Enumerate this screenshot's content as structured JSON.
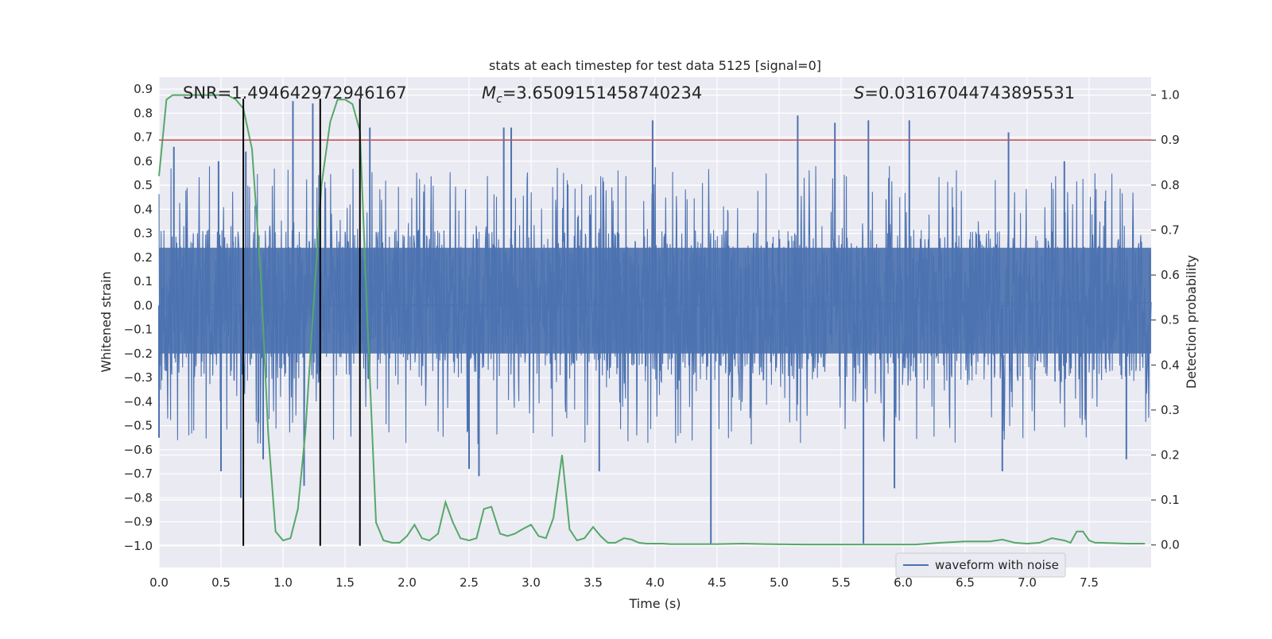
{
  "chart_data": {
    "type": "line",
    "title": "stats at each timestep for test data 5125 [signal=0]",
    "xlabel": "Time (s)",
    "ylabel": "Whitened strain",
    "y2label": "Detection probability",
    "xlim": [
      0.0,
      8.0
    ],
    "ylim": [
      -1.09,
      0.95
    ],
    "y2lim": [
      -0.05,
      1.04
    ],
    "xticks": [
      "0.0",
      "0.5",
      "1.0",
      "1.5",
      "2.0",
      "2.5",
      "3.0",
      "3.5",
      "4.0",
      "4.5",
      "5.0",
      "5.5",
      "6.0",
      "6.5",
      "7.0",
      "7.5"
    ],
    "yticks": [
      "0.9",
      "0.8",
      "0.7",
      "0.6",
      "0.5",
      "0.4",
      "0.3",
      "0.2",
      "0.1",
      "0.0",
      "-0.1",
      "-0.2",
      "-0.3",
      "-0.4",
      "-0.5",
      "-0.6",
      "-0.7",
      "-0.8",
      "-0.9",
      "-1.0"
    ],
    "y2ticks": [
      "1.0",
      "0.9",
      "0.8",
      "0.7",
      "0.6",
      "0.5",
      "0.4",
      "0.3",
      "0.2",
      "0.1",
      "0.0"
    ],
    "grid": true,
    "legend": {
      "position": "lower-right",
      "entries": [
        {
          "label": "waveform with noise",
          "color": "#4c72b0"
        }
      ]
    },
    "annotations": {
      "snr": "SNR=1.494642972946167",
      "mc_symbol": "M",
      "mc_sub": "c",
      "mc_value": "=3.6509151458740234",
      "s_symbol": "S",
      "s_value": "=0.03167044743895531"
    },
    "threshold": {
      "value": 0.9,
      "axis": "y2",
      "color": "#c44e52"
    },
    "vlines": {
      "x": [
        0.68,
        1.3,
        1.62
      ],
      "ymin": -1.0,
      "ymax": 0.86,
      "color": "#000000"
    },
    "waveform": {
      "name": "waveform with noise",
      "color": "#4c72b0",
      "x_start": 0.0,
      "x_end": 8.0,
      "core_amplitude": 0.3,
      "spikes": [
        {
          "x": 0.0,
          "y": -0.55
        },
        {
          "x": 0.12,
          "y": 0.66
        },
        {
          "x": 0.48,
          "y": 0.6
        },
        {
          "x": 0.5,
          "y": -0.69
        },
        {
          "x": 0.66,
          "y": -0.8
        },
        {
          "x": 0.7,
          "y": 0.64
        },
        {
          "x": 0.84,
          "y": -0.64
        },
        {
          "x": 1.08,
          "y": 0.85
        },
        {
          "x": 1.17,
          "y": -0.75
        },
        {
          "x": 1.24,
          "y": 0.84
        },
        {
          "x": 1.7,
          "y": 0.74
        },
        {
          "x": 2.5,
          "y": -0.68
        },
        {
          "x": 2.58,
          "y": -0.71
        },
        {
          "x": 2.78,
          "y": 0.74
        },
        {
          "x": 2.84,
          "y": 0.74
        },
        {
          "x": 3.55,
          "y": -0.69
        },
        {
          "x": 3.98,
          "y": 0.77
        },
        {
          "x": 4.45,
          "y": -0.99
        },
        {
          "x": 5.15,
          "y": 0.79
        },
        {
          "x": 5.45,
          "y": 0.76
        },
        {
          "x": 5.68,
          "y": -0.99
        },
        {
          "x": 5.72,
          "y": 0.77
        },
        {
          "x": 5.93,
          "y": -0.76
        },
        {
          "x": 6.05,
          "y": 0.77
        },
        {
          "x": 6.8,
          "y": -0.69
        },
        {
          "x": 6.85,
          "y": 0.72
        },
        {
          "x": 7.3,
          "y": 0.6
        },
        {
          "x": 7.8,
          "y": -0.64
        }
      ]
    },
    "probability": {
      "color": "#55a868",
      "x": [
        0.0,
        0.06,
        0.11,
        0.17,
        0.25,
        0.4,
        0.55,
        0.62,
        0.68,
        0.75,
        0.82,
        0.88,
        0.94,
        1.0,
        1.06,
        1.12,
        1.18,
        1.25,
        1.31,
        1.38,
        1.44,
        1.5,
        1.56,
        1.62,
        1.68,
        1.75,
        1.81,
        1.88,
        1.94,
        2.0,
        2.06,
        2.12,
        2.18,
        2.25,
        2.31,
        2.37,
        2.43,
        2.5,
        2.56,
        2.62,
        2.68,
        2.75,
        2.81,
        2.87,
        2.93,
        3.0,
        3.06,
        3.12,
        3.18,
        3.25,
        3.31,
        3.37,
        3.43,
        3.5,
        3.56,
        3.62,
        3.68,
        3.75,
        3.81,
        3.87,
        3.93,
        4.0,
        4.06,
        4.12,
        4.18,
        4.25,
        4.5,
        4.7,
        4.9,
        5.2,
        5.5,
        5.8,
        6.1,
        6.3,
        6.5,
        6.7,
        6.8,
        6.9,
        7.0,
        7.1,
        7.2,
        7.3,
        7.35,
        7.4,
        7.45,
        7.5,
        7.55,
        7.6,
        7.8,
        7.95
      ],
      "y": [
        0.82,
        0.99,
        1.0,
        1.0,
        1.0,
        1.0,
        1.0,
        0.99,
        0.97,
        0.88,
        0.6,
        0.25,
        0.03,
        0.01,
        0.015,
        0.08,
        0.25,
        0.55,
        0.8,
        0.94,
        0.99,
        0.99,
        0.98,
        0.92,
        0.5,
        0.05,
        0.01,
        0.005,
        0.005,
        0.02,
        0.045,
        0.015,
        0.01,
        0.025,
        0.095,
        0.05,
        0.015,
        0.01,
        0.015,
        0.08,
        0.085,
        0.025,
        0.02,
        0.025,
        0.035,
        0.045,
        0.02,
        0.015,
        0.06,
        0.2,
        0.035,
        0.01,
        0.015,
        0.04,
        0.02,
        0.005,
        0.005,
        0.015,
        0.012,
        0.005,
        0.003,
        0.003,
        0.003,
        0.002,
        0.002,
        0.002,
        0.002,
        0.003,
        0.002,
        0.001,
        0.001,
        0.001,
        0.001,
        0.005,
        0.008,
        0.008,
        0.012,
        0.005,
        0.003,
        0.005,
        0.015,
        0.01,
        0.005,
        0.03,
        0.03,
        0.01,
        0.005,
        0.005,
        0.003,
        0.003
      ]
    }
  }
}
